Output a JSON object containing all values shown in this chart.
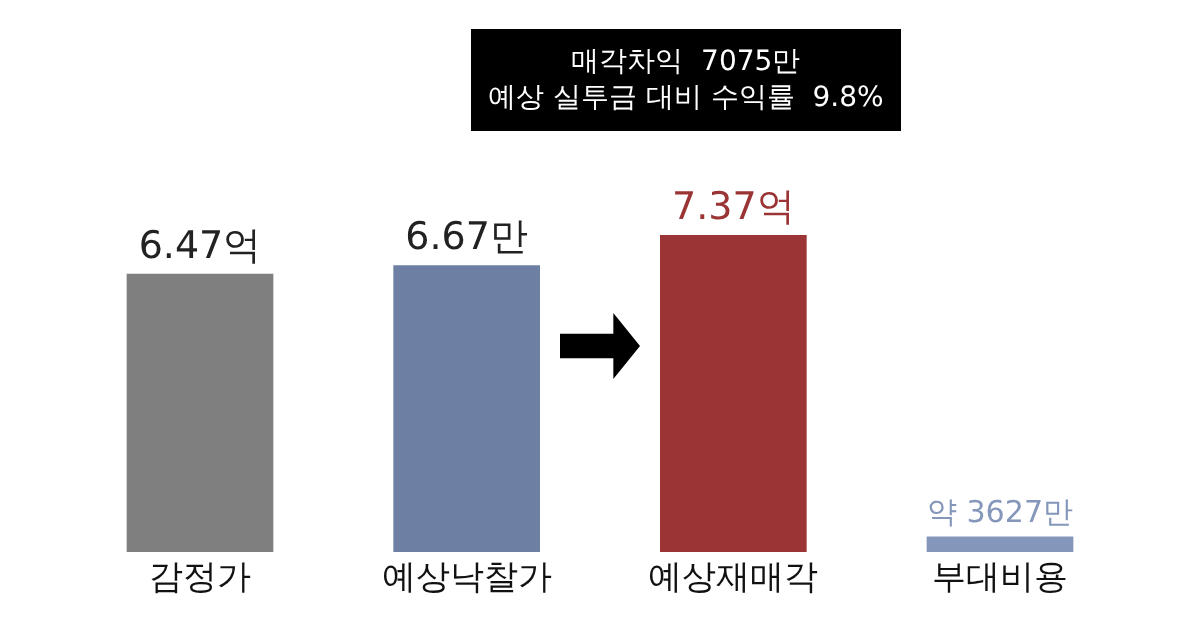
{
  "chart_data": {
    "type": "bar",
    "categories": [
      "감정가",
      "예상낙찰가",
      "예상재매각",
      "부대비용"
    ],
    "values": [
      6.47,
      6.67,
      7.37,
      0.3627
    ],
    "colors": [
      "#7f7f7f",
      "#6d7fa3",
      "#9b3434",
      "#8596bb"
    ],
    "value_labels": [
      "6.47억",
      "6.67만",
      "7.37억",
      "약 3627만"
    ],
    "annotations": [
      "매각차익  7075만\n예상 실투금 대비 수익률  9.8%"
    ]
  }
}
